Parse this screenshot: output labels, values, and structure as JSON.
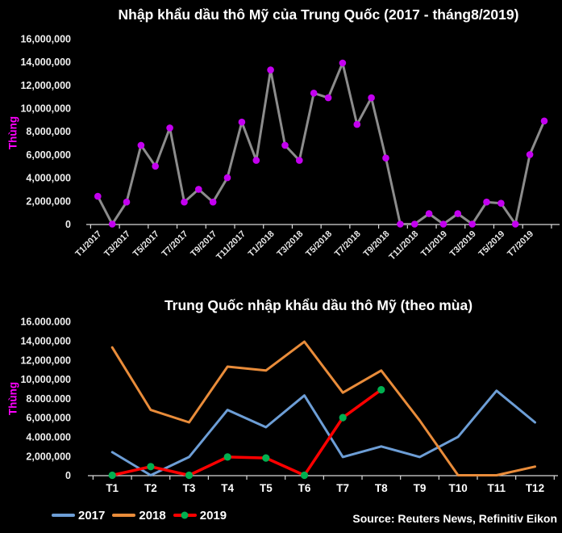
{
  "source": "Source: Reuters News, Refinitiv Eikon",
  "colors": {
    "background": "#000000",
    "title_text": "#FFFFFF",
    "axis_line": "#D9D9D9",
    "tick_label": "#F0F0F0",
    "y_axis_label": "#FF00FF",
    "top_series_line": "#8C8C8C",
    "top_series_marker": "#C400F0",
    "series_2017": "#6D9ED6",
    "series_2018": "#E98C3A",
    "series_2019": "#FF0000",
    "series_2019_marker": "#00B050"
  },
  "chart_data": [
    {
      "type": "line",
      "title": "Nhập khẩu dầu thô Mỹ của Trung Quốc (2017 - tháng8/2019)",
      "ylabel": "Thùng",
      "xlabel": "",
      "ylim": [
        0,
        16000000
      ],
      "grid": "off",
      "legend_position": "none",
      "ytick_labels": [
        "16,000,000",
        "14,000,000",
        "12,000,000",
        "10,000,000",
        "8,000,000",
        "6,000,000",
        "4,000,000",
        "2,000,000",
        "0"
      ],
      "x_tick_labels_shown": [
        "T1/2017",
        "T3/2017",
        "T5/2017",
        "T7/2017",
        "T9/2017",
        "T11/2017",
        "T1/2018",
        "T3/2018",
        "T5/2018",
        "T7/2018",
        "T9/2018",
        "T11/2018",
        "T1/2019",
        "T3/2019",
        "T5/2019",
        "T7/2019"
      ],
      "x_tick_rotation_deg": -45,
      "categories": [
        "T1/2017",
        "T2/2017",
        "T3/2017",
        "T4/2017",
        "T5/2017",
        "T6/2017",
        "T7/2017",
        "T8/2017",
        "T9/2017",
        "T10/2017",
        "T11/2017",
        "T12/2017",
        "T1/2018",
        "T2/2018",
        "T3/2018",
        "T4/2018",
        "T5/2018",
        "T6/2018",
        "T7/2018",
        "T8/2018",
        "T9/2018",
        "T10/2018",
        "T11/2018",
        "T12/2018",
        "T1/2019",
        "T2/2019",
        "T3/2019",
        "T4/2019",
        "T5/2019",
        "T6/2019",
        "T7/2019",
        "T8/2019"
      ],
      "series": [
        {
          "name": "Nhập khẩu dầu thô",
          "line_color": "#8C8C8C",
          "marker_color": "#C400F0",
          "values": [
            2400000,
            0,
            1900000,
            6800000,
            5000000,
            8300000,
            1900000,
            3000000,
            1900000,
            4000000,
            8800000,
            5500000,
            13300000,
            6800000,
            5500000,
            11300000,
            10900000,
            13900000,
            8600000,
            10900000,
            5700000,
            0,
            0,
            900000,
            0,
            900000,
            0,
            1900000,
            1800000,
            0,
            6000000,
            8900000
          ]
        }
      ]
    },
    {
      "type": "line",
      "title": "Trung Quốc nhập khẩu dầu thô Mỹ (theo mùa)",
      "ylabel": "Thùng",
      "xlabel": "",
      "ylim": [
        0,
        16000000
      ],
      "grid": "off",
      "legend_position": "bottom-left",
      "ytick_labels": [
        "16.000.000",
        "14,000,000",
        "12,000,000",
        "10,000,000",
        "8.000.000",
        "6,000,000",
        "4.000.000",
        "2,000,000",
        "0"
      ],
      "categories": [
        "T1",
        "T2",
        "T3",
        "T4",
        "T5",
        "T6",
        "T7",
        "T8",
        "T9",
        "T10",
        "T11",
        "T12"
      ],
      "series": [
        {
          "name": "2017",
          "line_color": "#6D9ED6",
          "marker_color": "",
          "values": [
            2400000,
            0,
            1900000,
            6800000,
            5000000,
            8300000,
            1900000,
            3000000,
            1900000,
            4000000,
            8800000,
            5500000
          ]
        },
        {
          "name": "2018",
          "line_color": "#E98C3A",
          "marker_color": "",
          "values": [
            13300000,
            6800000,
            5500000,
            11300000,
            10900000,
            13900000,
            8600000,
            10900000,
            5700000,
            0,
            0,
            900000
          ]
        },
        {
          "name": "2019",
          "line_color": "#FF0000",
          "marker_color": "#00B050",
          "values": [
            0,
            900000,
            0,
            1900000,
            1800000,
            0,
            6000000,
            8900000
          ]
        }
      ]
    }
  ]
}
